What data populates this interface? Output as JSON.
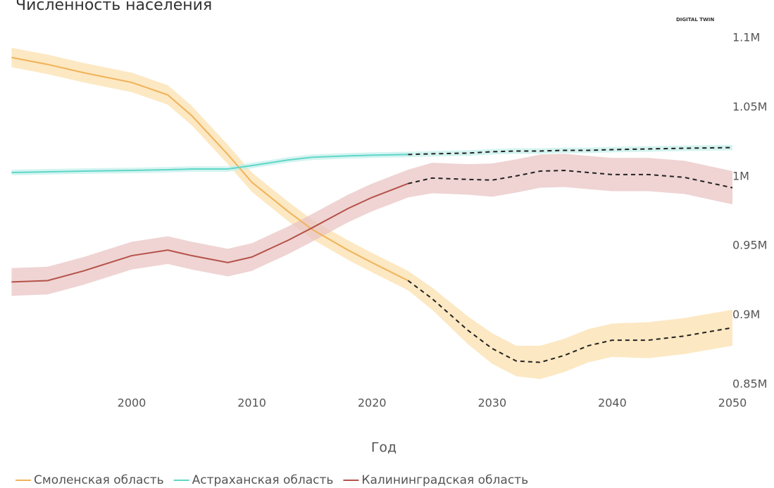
{
  "chart_data": {
    "type": "line",
    "title": "Численность населения",
    "logo": "DIGITAL TWIN",
    "x_label": "Год",
    "x": [
      1990,
      1993,
      1996,
      2000,
      2003,
      2005,
      2008,
      2010,
      2013,
      2015,
      2018,
      2020,
      2023,
      2025,
      2028,
      2030,
      2032,
      2034,
      2036,
      2038,
      2040,
      2043,
      2046,
      2050
    ],
    "forecast_start": 2023,
    "xlim": [
      1990,
      2050
    ],
    "xticks": [
      2000,
      2010,
      2020,
      2030,
      2040,
      2050
    ],
    "ylim": [
      850000,
      1100000
    ],
    "yticks": [
      {
        "value": 850000,
        "label": "0.85M"
      },
      {
        "value": 900000,
        "label": "0.9M"
      },
      {
        "value": 950000,
        "label": "0.95M"
      },
      {
        "value": 1000000,
        "label": "1M"
      },
      {
        "value": 1050000,
        "label": "1.05M"
      },
      {
        "value": 1100000,
        "label": "1.1M"
      }
    ],
    "grid": false,
    "forecast_color": "#222222",
    "series": [
      {
        "name": "Смоленская область",
        "color": "#f0b25a",
        "band_color": "#fbe0ad",
        "values": [
          1088000,
          1083000,
          1077000,
          1070000,
          1061000,
          1046000,
          1018000,
          998000,
          977000,
          964000,
          949000,
          940000,
          927000,
          914000,
          891000,
          878000,
          869000,
          868000,
          873000,
          880000,
          884000,
          884000,
          887000,
          893000
        ],
        "lower": [
          1081000,
          1076000,
          1070000,
          1063000,
          1054000,
          1039000,
          1011000,
          991000,
          970000,
          957000,
          942000,
          933000,
          920000,
          906000,
          881000,
          867000,
          858000,
          856000,
          861000,
          868000,
          872000,
          871000,
          874000,
          880000
        ],
        "upper": [
          1095000,
          1090000,
          1084000,
          1077000,
          1068000,
          1053000,
          1025000,
          1005000,
          984000,
          971000,
          956000,
          947000,
          934000,
          922000,
          901000,
          889000,
          880000,
          880000,
          885000,
          892000,
          896000,
          897000,
          900000,
          906000
        ]
      },
      {
        "name": "Астраханская область",
        "color": "#5fd6c8",
        "band_color": "#c6f0eb",
        "values": [
          1005000,
          1005500,
          1006000,
          1006500,
          1007000,
          1007500,
          1007500,
          1010000,
          1014000,
          1016000,
          1017000,
          1017500,
          1018000,
          1018500,
          1019000,
          1020000,
          1020500,
          1020500,
          1021000,
          1021000,
          1021500,
          1022000,
          1022500,
          1023000
        ],
        "lower": [
          1003000,
          1003500,
          1004000,
          1004500,
          1005000,
          1005500,
          1005500,
          1008000,
          1012000,
          1014000,
          1015000,
          1015500,
          1016000,
          1016500,
          1017000,
          1018000,
          1018500,
          1018500,
          1019000,
          1019000,
          1019500,
          1020000,
          1020500,
          1021000
        ],
        "upper": [
          1007000,
          1007500,
          1008000,
          1008500,
          1009000,
          1009500,
          1009500,
          1012000,
          1016000,
          1018000,
          1019000,
          1019500,
          1020000,
          1020500,
          1021000,
          1022000,
          1022500,
          1022500,
          1023000,
          1023000,
          1023500,
          1024000,
          1024500,
          1025000
        ]
      },
      {
        "name": "Калининградская область",
        "color": "#b5524a",
        "band_color": "#e9c6c4",
        "values": [
          926000,
          927000,
          934000,
          945000,
          949000,
          945000,
          940000,
          944000,
          956000,
          965000,
          979000,
          987000,
          997000,
          1001000,
          1000000,
          999500,
          1002500,
          1006000,
          1006500,
          1005000,
          1003500,
          1003500,
          1001500,
          994000
        ],
        "lower": [
          916000,
          917000,
          924000,
          935000,
          939000,
          935000,
          930000,
          934000,
          946000,
          955000,
          969000,
          977000,
          987000,
          990000,
          989000,
          987500,
          990500,
          994000,
          994500,
          993000,
          991500,
          991500,
          989500,
          982000
        ],
        "upper": [
          936000,
          937000,
          944000,
          955000,
          959000,
          955000,
          950000,
          954000,
          966000,
          975000,
          989000,
          997000,
          1007000,
          1012000,
          1011000,
          1011500,
          1014500,
          1018000,
          1018500,
          1017000,
          1015500,
          1015500,
          1013500,
          1006000
        ]
      }
    ]
  }
}
